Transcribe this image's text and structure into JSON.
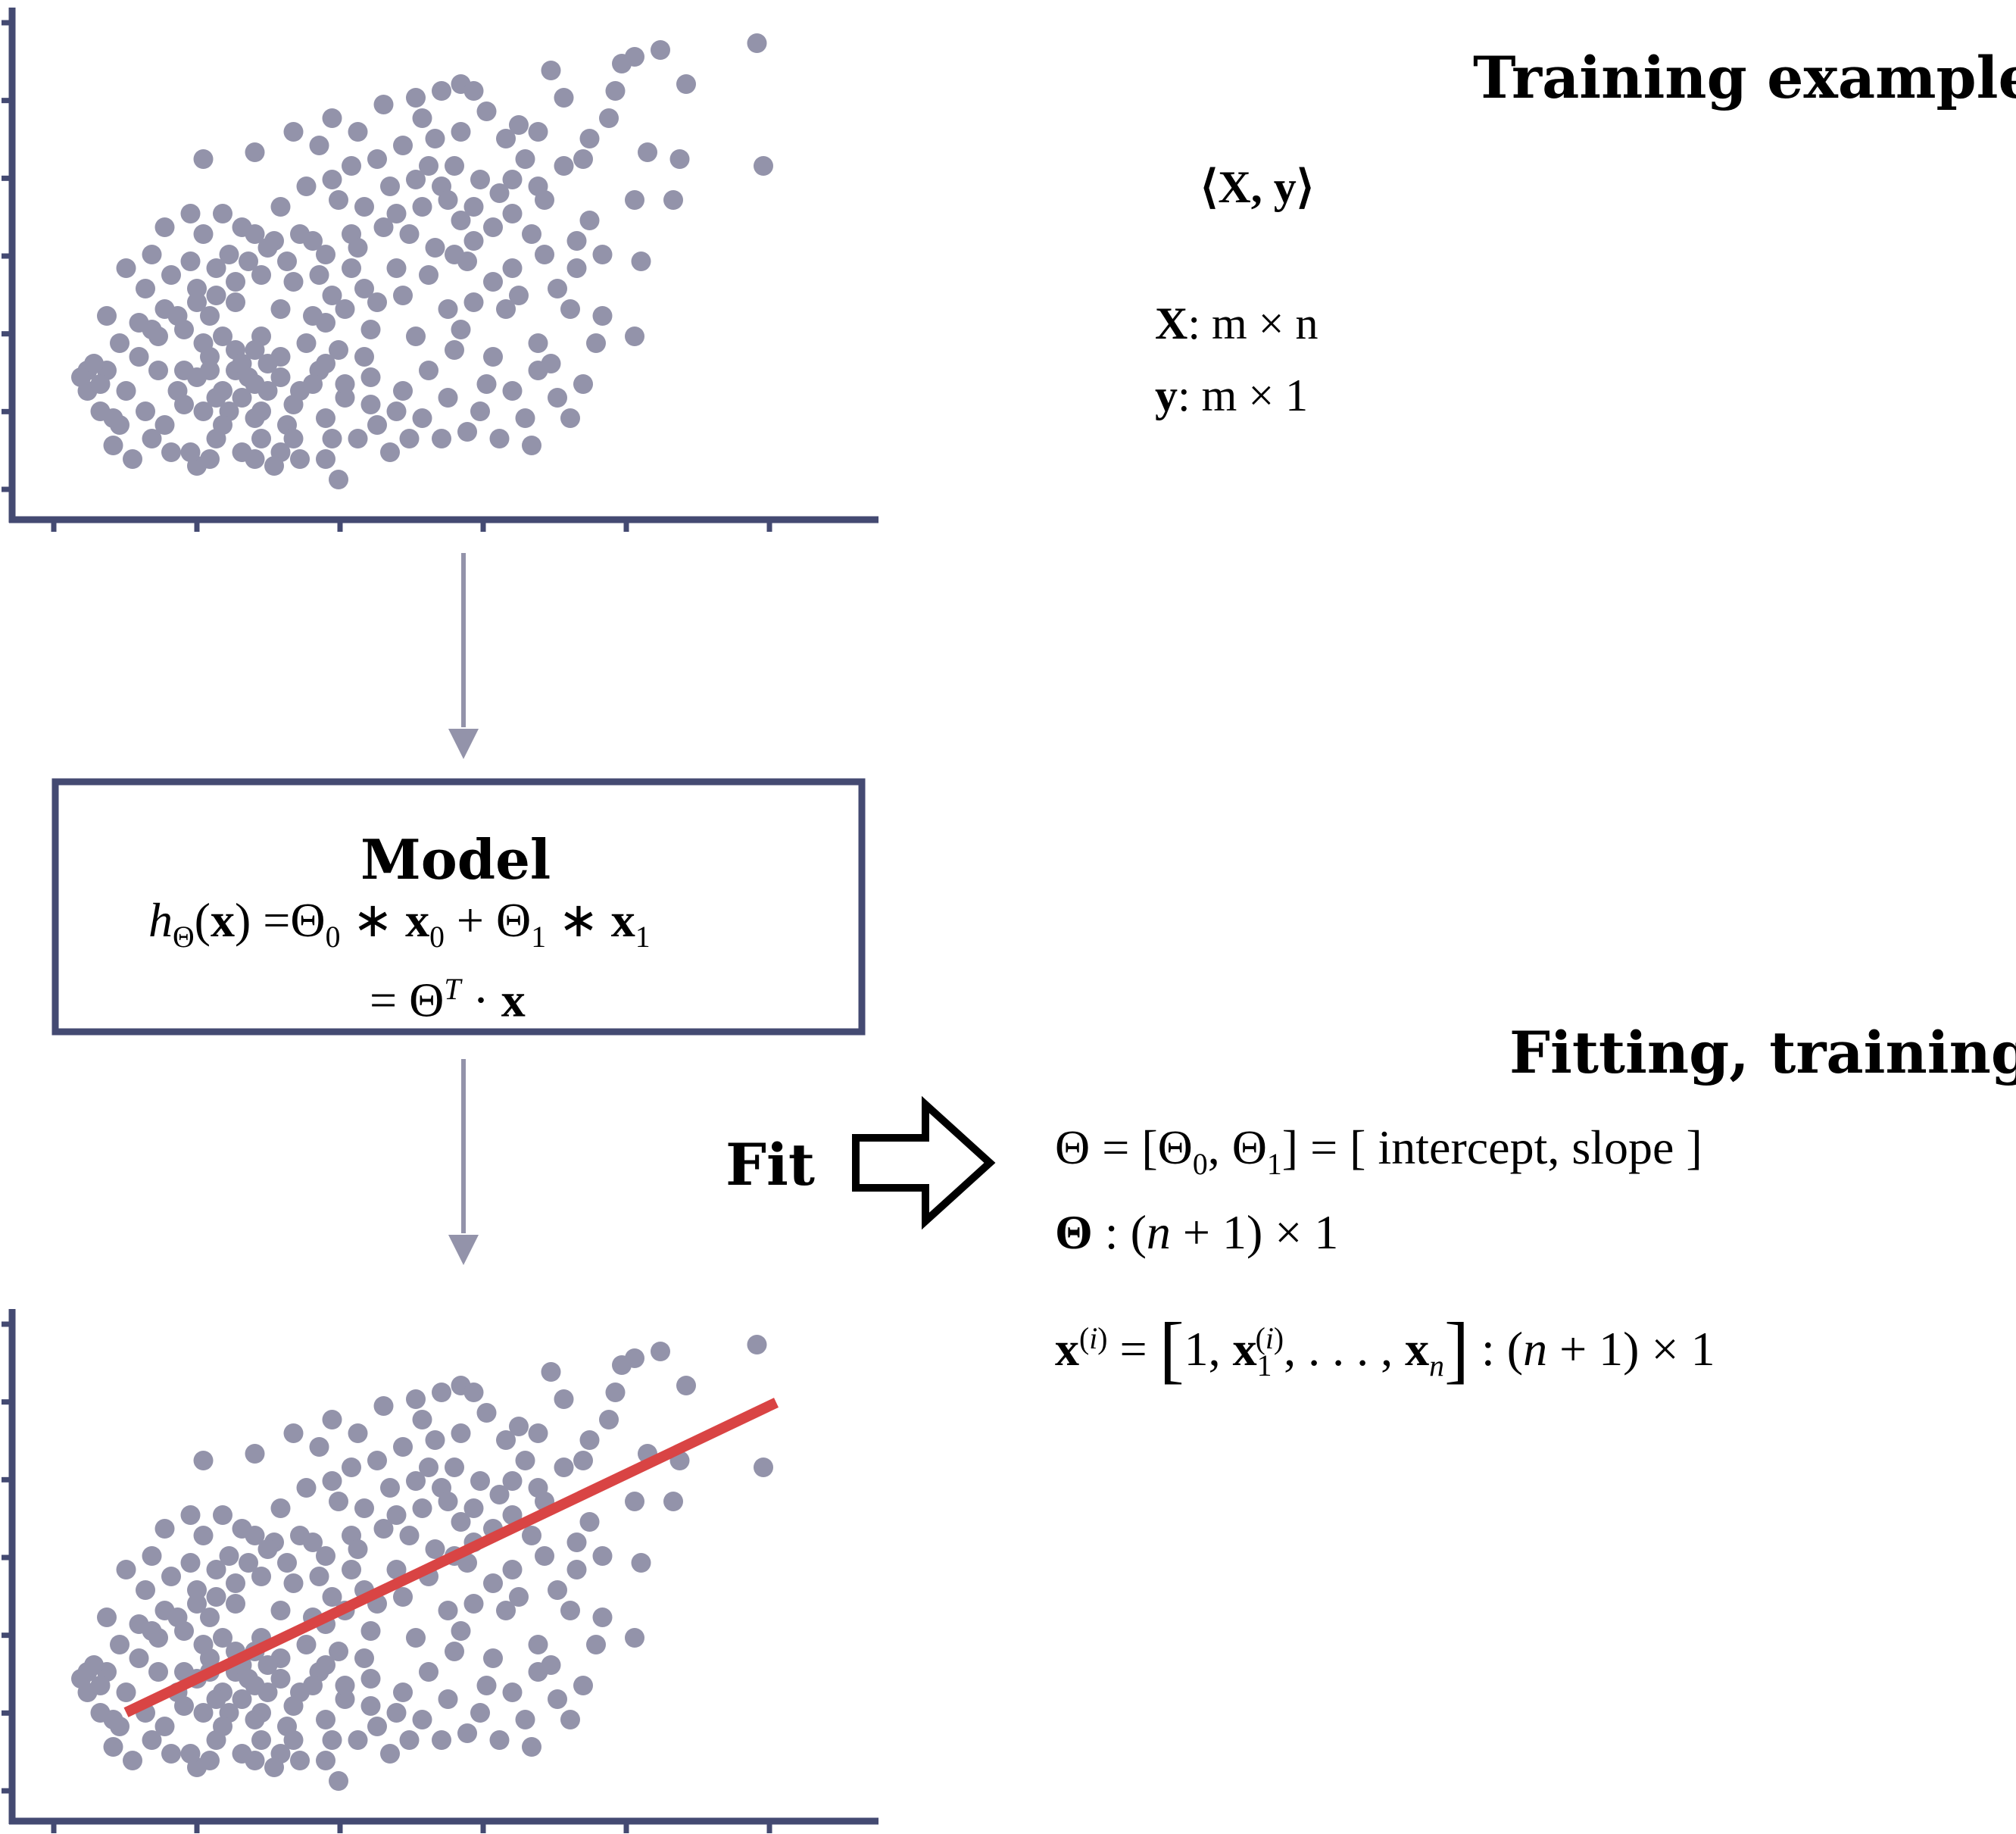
{
  "colors": {
    "axis": "#444a72",
    "points": "#9393aa",
    "fit_line": "#d94444",
    "box_border": "#444a72",
    "flow_arrow": "#9393aa",
    "fit_arrow": "#000000"
  },
  "icons": {
    "fit_arrow": "hollow-right-arrow-icon",
    "flow_arrow": "down-arrow-icon"
  },
  "training": {
    "heading": "Training examples",
    "pair": "⟨X, y⟩",
    "x_dim_lhs": "X",
    "x_dim_rhs": ": m × n",
    "y_dim_lhs": "y",
    "y_dim_rhs": ": m × 1"
  },
  "model": {
    "title": "Model",
    "line1": "hΘ(x) = Θ0 ∗ x0 + Θ1 ∗ x1",
    "line2": "= ΘT · x"
  },
  "fit": {
    "label": "Fit",
    "heading": "Fitting, training",
    "theta_def": "Θ = [Θ0, Θ1] = [ intercept, slope ]",
    "theta_bracket_text": "[ intercept, slope ]",
    "theta_dim": "Θ : (n + 1) × 1",
    "x_def": "x(i) = [1, x1(i), ..., xn] : (n + 1) × 1"
  },
  "chart_data": [
    {
      "type": "scatter",
      "title": "",
      "xlabel": "",
      "ylabel": "",
      "xlim": [
        0,
        12
      ],
      "ylim": [
        0,
        7
      ],
      "series": [
        {
          "points": [
            [
              10.7,
              6.7
            ],
            [
              9.2,
              6.6
            ],
            [
              8.8,
              6.5
            ],
            [
              7.5,
              6.3
            ],
            [
              8.6,
              6.4
            ],
            [
              9.6,
              6.1
            ],
            [
              8.5,
              6.0
            ],
            [
              7.7,
              5.9
            ],
            [
              8.4,
              5.6
            ],
            [
              6.1,
              6.1
            ],
            [
              6.3,
              6.0
            ],
            [
              5.8,
              6.0
            ],
            [
              5.4,
              5.9
            ],
            [
              4.9,
              5.8
            ],
            [
              4.1,
              5.6
            ],
            [
              4.5,
              5.4
            ],
            [
              3.5,
              5.4
            ],
            [
              2.9,
              5.1
            ],
            [
              2.1,
              5.0
            ],
            [
              3.9,
              5.2
            ],
            [
              4.8,
              5.0
            ],
            [
              5.5,
              5.6
            ],
            [
              6.5,
              5.7
            ],
            [
              7.0,
              5.5
            ],
            [
              7.3,
              5.4
            ],
            [
              8.0,
              5.0
            ],
            [
              8.1,
              5.3
            ],
            [
              9.0,
              5.1
            ],
            [
              9.5,
              5.0
            ],
            [
              10.8,
              4.9
            ],
            [
              9.4,
              4.4
            ],
            [
              8.8,
              4.4
            ],
            [
              7.4,
              4.4
            ],
            [
              6.7,
              4.5
            ],
            [
              6.4,
              4.7
            ],
            [
              6.0,
              4.9
            ],
            [
              5.6,
              4.9
            ],
            [
              5.0,
              4.6
            ],
            [
              4.2,
              4.4
            ],
            [
              3.7,
              4.6
            ],
            [
              3.3,
              4.3
            ],
            [
              2.4,
              4.2
            ],
            [
              2.7,
              4.0
            ],
            [
              1.9,
              4.2
            ],
            [
              1.5,
              4.0
            ],
            [
              2.9,
              3.9
            ],
            [
              3.2,
              3.8
            ],
            [
              3.6,
              3.9
            ],
            [
              4.4,
              3.9
            ],
            [
              4.9,
              4.0
            ],
            [
              5.5,
              4.3
            ],
            [
              6.1,
              4.1
            ],
            [
              6.6,
              4.0
            ],
            [
              7.2,
              3.9
            ],
            [
              7.9,
              3.8
            ],
            [
              8.3,
              3.6
            ],
            [
              8.9,
              3.5
            ],
            [
              6.9,
              3.4
            ],
            [
              6.2,
              3.5
            ],
            [
              5.6,
              3.3
            ],
            [
              5.1,
              3.4
            ],
            [
              4.4,
              3.4
            ],
            [
              3.9,
              3.3
            ],
            [
              3.5,
              3.2
            ],
            [
              3.0,
              3.3
            ],
            [
              2.6,
              3.2
            ],
            [
              2.3,
              3.0
            ],
            [
              2.0,
              3.1
            ],
            [
              2.6,
              2.9
            ],
            [
              3.3,
              2.8
            ],
            [
              4.0,
              2.6
            ],
            [
              4.7,
              2.5
            ],
            [
              5.4,
              2.4
            ],
            [
              6.0,
              2.2
            ],
            [
              6.6,
              2.1
            ],
            [
              7.3,
              2.3
            ],
            [
              8.3,
              2.7
            ],
            [
              8.2,
              2.3
            ],
            [
              7.5,
              2.0
            ],
            [
              8.0,
              1.7
            ],
            [
              7.6,
              1.5
            ],
            [
              6.9,
              1.6
            ],
            [
              6.4,
              1.3
            ],
            [
              6.2,
              1.0
            ],
            [
              5.8,
              0.9
            ],
            [
              5.5,
              1.2
            ],
            [
              5.2,
              1.6
            ],
            [
              4.7,
              1.8
            ],
            [
              4.3,
              1.5
            ],
            [
              4.0,
              1.2
            ],
            [
              4.5,
              0.9
            ],
            [
              5.0,
              0.7
            ],
            [
              5.3,
              0.9
            ],
            [
              4.8,
              1.1
            ],
            [
              5.6,
              1.9
            ],
            [
              6.1,
              2.5
            ],
            [
              6.8,
              2.8
            ],
            [
              7.1,
              1.2
            ],
            [
              6.7,
              0.9
            ],
            [
              7.2,
              0.8
            ],
            [
              4.2,
              0.3
            ],
            [
              4.0,
              0.6
            ],
            [
              3.6,
              0.6
            ],
            [
              3.3,
              0.7
            ],
            [
              3.0,
              0.9
            ],
            [
              2.7,
              0.7
            ],
            [
              2.3,
              0.9
            ],
            [
              2.0,
              0.5
            ],
            [
              1.6,
              0.7
            ],
            [
              1.3,
              0.9
            ],
            [
              1.0,
              0.6
            ],
            [
              0.8,
              1.1
            ],
            [
              0.5,
              1.3
            ],
            [
              0.3,
              1.6
            ],
            [
              0.6,
              1.9
            ],
            [
              0.9,
              1.6
            ],
            [
              1.2,
              1.3
            ],
            [
              1.5,
              1.1
            ],
            [
              1.8,
              1.4
            ],
            [
              2.1,
              1.3
            ],
            [
              2.4,
              1.6
            ],
            [
              2.7,
              1.5
            ],
            [
              3.0,
              1.3
            ],
            [
              3.3,
              1.8
            ],
            [
              3.6,
              1.6
            ],
            [
              3.9,
              1.9
            ],
            [
              4.2,
              2.2
            ],
            [
              3.7,
              2.3
            ],
            [
              3.3,
              2.1
            ],
            [
              3.0,
              2.4
            ],
            [
              2.6,
              2.2
            ],
            [
              2.2,
              2.1
            ],
            [
              2.0,
              1.8
            ],
            [
              1.7,
              1.6
            ],
            [
              1.4,
              1.9
            ],
            [
              1.1,
              2.1
            ],
            [
              1.4,
              2.4
            ],
            [
              1.8,
              2.5
            ],
            [
              2.2,
              2.7
            ],
            [
              1.5,
              2.8
            ],
            [
              1.2,
              3.1
            ],
            [
              0.9,
              3.4
            ],
            [
              1.3,
              3.6
            ],
            [
              1.6,
              3.3
            ],
            [
              1.9,
              3.5
            ],
            [
              2.5,
              3.6
            ],
            [
              2.8,
              3.5
            ],
            [
              3.1,
              3.7
            ],
            [
              0.6,
              2.7
            ],
            [
              0.3,
              1.9
            ],
            [
              0.2,
              1.8
            ],
            [
              0.5,
              1.7
            ],
            [
              0.4,
              2.0
            ],
            [
              0.7,
              1.2
            ],
            [
              1.3,
              2.5
            ],
            [
              2.6,
              1.9
            ],
            [
              2.8,
              1.8
            ],
            [
              3.1,
              1.6
            ],
            [
              2.9,
              1.2
            ],
            [
              2.5,
              1.3
            ],
            [
              2.4,
              1.1
            ],
            [
              2.7,
              2.0
            ],
            [
              3.5,
              1.4
            ],
            [
              3.8,
              1.7
            ],
            [
              4.3,
              1.7
            ],
            [
              4.0,
              2.0
            ],
            [
              1.8,
              1.9
            ],
            [
              2.1,
              2.3
            ],
            [
              2.3,
              1.5
            ],
            [
              2.9,
              1.7
            ],
            [
              3.4,
              1.1
            ],
            [
              3.2,
              0.5
            ],
            [
              4.6,
              2.1
            ],
            [
              5.9,
              2.8
            ],
            [
              6.3,
              2.9
            ],
            [
              5.2,
              3.0
            ],
            [
              6.6,
              3.2
            ],
            [
              7.0,
              3.0
            ],
            [
              7.6,
              3.1
            ],
            [
              7.8,
              2.8
            ],
            [
              8.8,
              2.4
            ],
            [
              4.8,
              2.9
            ],
            [
              4.3,
              2.8
            ],
            [
              3.8,
              2.7
            ],
            [
              4.1,
              3.0
            ],
            [
              4.6,
              3.1
            ],
            [
              5.7,
              3.7
            ],
            [
              6.3,
              3.8
            ],
            [
              6.0,
              3.6
            ],
            [
              5.3,
              3.9
            ],
            [
              5.1,
              4.2
            ],
            [
              4.6,
              4.3
            ],
            [
              4.1,
              4.7
            ],
            [
              4.4,
              4.9
            ],
            [
              5.2,
              5.2
            ],
            [
              5.7,
              5.3
            ],
            [
              6.1,
              5.4
            ],
            [
              6.8,
              5.3
            ],
            [
              7.1,
              5.0
            ],
            [
              6.9,
              4.7
            ],
            [
              5.8,
              4.6
            ],
            [
              5.4,
              4.7
            ],
            [
              5.9,
              4.4
            ],
            [
              6.3,
              4.3
            ],
            [
              6.9,
              4.2
            ],
            [
              7.3,
              4.6
            ],
            [
              7.7,
              4.9
            ],
            [
              8.1,
              4.1
            ],
            [
              7.9,
              3.4
            ],
            [
              7.4,
              3.6
            ],
            [
              3.8,
              3.8
            ],
            [
              3.4,
              3.5
            ],
            [
              4.0,
              3.6
            ],
            [
              4.5,
              3.7
            ],
            [
              2.1,
              3.9
            ],
            [
              2.3,
              3.4
            ],
            [
              2.0,
              2.9
            ],
            [
              1.7,
              2.7
            ],
            [
              1.1,
              2.6
            ],
            [
              0.8,
              2.3
            ],
            [
              0.7,
              0.8
            ],
            [
              1.9,
              0.7
            ],
            [
              2.2,
              0.6
            ],
            [
              2.9,
              0.6
            ],
            [
              3.5,
              0.9
            ],
            [
              4.1,
              0.9
            ],
            [
              4.7,
              1.4
            ],
            [
              5.1,
              1.3
            ],
            [
              5.9,
              1.5
            ],
            [
              6.5,
              1.7
            ],
            [
              7.3,
              1.9
            ],
            [
              7.8,
              1.2
            ],
            [
              3.1,
              2.0
            ],
            [
              2.9,
              2.2
            ],
            [
              2.4,
              2.4
            ],
            [
              2.2,
              1.9
            ]
          ]
        }
      ]
    },
    {
      "type": "scatter",
      "title": "",
      "xlabel": "",
      "ylabel": "",
      "xlim": [
        0,
        12
      ],
      "ylim": [
        0,
        7
      ],
      "fit_line": {
        "intercept": 0.9,
        "slope": 0.45,
        "x_range": [
          0.9,
          11.0
        ]
      },
      "series": [
        {
          "points_same_as_chart": 0
        }
      ]
    }
  ]
}
